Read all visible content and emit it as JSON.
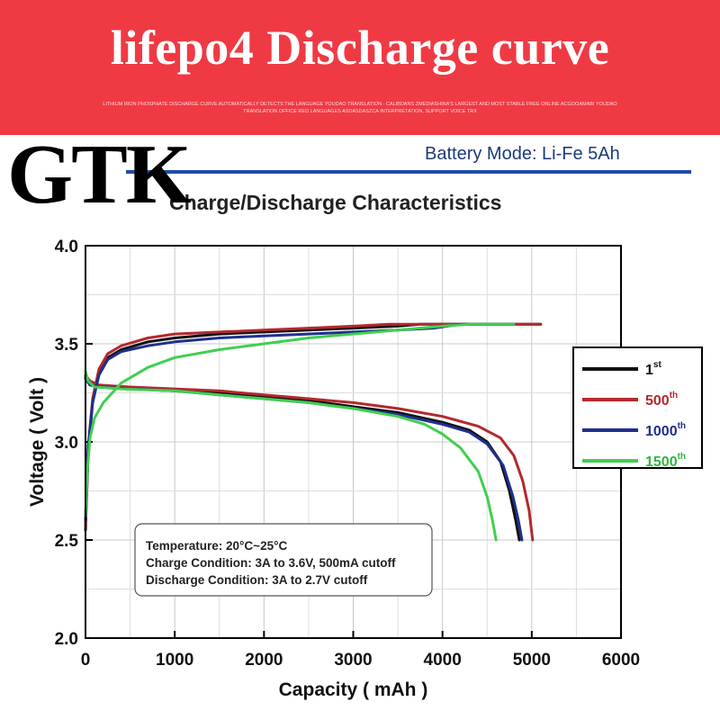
{
  "banner": {
    "title": "lifepo4 Discharge curve",
    "fine_print": "LITHIUM IRON PHOSPHATE DISCHARGE CURVE AUTOMATICALLY DETECTS THE LANGUAGE YOUDAO TRANSLATION - CALIBDANS ZMEDIASHINA'S LARGEST AND MOST STABLE FREE ONLINE ACGOOAMABI YOUDAO TRANSLATION OFFICE RED LANGUAGES ASDASDASZCA INTERPRETATION, SUPPORT VOICE TRX"
  },
  "brand": {
    "text": "GTK"
  },
  "battery_mode": "Battery Mode: Li-Fe 5Ah",
  "chart_data": {
    "type": "line",
    "title": "Charge/Discharge Characteristics",
    "xlabel": "Capacity ( mAh )",
    "ylabel": "Voltage ( Volt )",
    "xlim": [
      0,
      6000
    ],
    "ylim": [
      2.0,
      4.0
    ],
    "xticks": [
      "0",
      "1000",
      "2000",
      "3000",
      "4000",
      "5000",
      "6000"
    ],
    "yticks": [
      "2.0",
      "2.5",
      "3.0",
      "3.5",
      "4.0"
    ],
    "grid": true,
    "legend_position": "right",
    "series": [
      {
        "name": "1st",
        "name_base": "1",
        "name_sup": "st",
        "color": "#111111",
        "charge": [
          [
            0,
            2.55
          ],
          [
            30,
            2.95
          ],
          [
            80,
            3.2
          ],
          [
            150,
            3.35
          ],
          [
            250,
            3.43
          ],
          [
            400,
            3.47
          ],
          [
            700,
            3.51
          ],
          [
            1000,
            3.53
          ],
          [
            1500,
            3.55
          ],
          [
            2000,
            3.56
          ],
          [
            2500,
            3.57
          ],
          [
            3000,
            3.58
          ],
          [
            3500,
            3.59
          ],
          [
            3750,
            3.6
          ],
          [
            5100,
            3.6
          ]
        ],
        "discharge": [
          [
            0,
            3.33
          ],
          [
            50,
            3.3
          ],
          [
            150,
            3.28
          ],
          [
            500,
            3.27
          ],
          [
            1000,
            3.26
          ],
          [
            1500,
            3.25
          ],
          [
            2000,
            3.23
          ],
          [
            2500,
            3.21
          ],
          [
            3000,
            3.18
          ],
          [
            3500,
            3.15
          ],
          [
            4000,
            3.1
          ],
          [
            4300,
            3.06
          ],
          [
            4500,
            3.0
          ],
          [
            4650,
            2.9
          ],
          [
            4750,
            2.75
          ],
          [
            4820,
            2.6
          ],
          [
            4860,
            2.5
          ]
        ]
      },
      {
        "name": "500th",
        "name_base": "500",
        "name_sup": "th",
        "color": "#b3292f",
        "charge": [
          [
            0,
            2.58
          ],
          [
            30,
            2.97
          ],
          [
            80,
            3.22
          ],
          [
            150,
            3.37
          ],
          [
            250,
            3.45
          ],
          [
            400,
            3.49
          ],
          [
            700,
            3.53
          ],
          [
            1000,
            3.55
          ],
          [
            1500,
            3.56
          ],
          [
            2000,
            3.57
          ],
          [
            2500,
            3.58
          ],
          [
            3000,
            3.59
          ],
          [
            3400,
            3.6
          ],
          [
            5100,
            3.6
          ]
        ],
        "discharge": [
          [
            0,
            3.34
          ],
          [
            50,
            3.31
          ],
          [
            150,
            3.29
          ],
          [
            500,
            3.28
          ],
          [
            1000,
            3.27
          ],
          [
            1500,
            3.26
          ],
          [
            2000,
            3.24
          ],
          [
            2500,
            3.22
          ],
          [
            3000,
            3.2
          ],
          [
            3500,
            3.17
          ],
          [
            4000,
            3.13
          ],
          [
            4400,
            3.08
          ],
          [
            4650,
            3.02
          ],
          [
            4800,
            2.93
          ],
          [
            4900,
            2.8
          ],
          [
            4970,
            2.65
          ],
          [
            5010,
            2.5
          ]
        ]
      },
      {
        "name": "1000th",
        "name_base": "1000",
        "name_sup": "th",
        "color": "#1f2f8f",
        "charge": [
          [
            0,
            2.6
          ],
          [
            30,
            2.98
          ],
          [
            80,
            3.2
          ],
          [
            150,
            3.34
          ],
          [
            250,
            3.42
          ],
          [
            400,
            3.46
          ],
          [
            700,
            3.49
          ],
          [
            1000,
            3.51
          ],
          [
            1500,
            3.53
          ],
          [
            2000,
            3.54
          ],
          [
            2500,
            3.55
          ],
          [
            3000,
            3.56
          ],
          [
            3500,
            3.57
          ],
          [
            3900,
            3.58
          ],
          [
            4200,
            3.6
          ],
          [
            4800,
            3.6
          ]
        ],
        "discharge": [
          [
            0,
            3.32
          ],
          [
            50,
            3.29
          ],
          [
            150,
            3.28
          ],
          [
            500,
            3.27
          ],
          [
            1000,
            3.26
          ],
          [
            1500,
            3.24
          ],
          [
            2000,
            3.22
          ],
          [
            2500,
            3.2
          ],
          [
            3000,
            3.17
          ],
          [
            3500,
            3.14
          ],
          [
            4000,
            3.09
          ],
          [
            4300,
            3.05
          ],
          [
            4500,
            2.99
          ],
          [
            4680,
            2.88
          ],
          [
            4790,
            2.72
          ],
          [
            4850,
            2.6
          ],
          [
            4890,
            2.5
          ]
        ]
      },
      {
        "name": "1500th",
        "name_base": "1500",
        "name_sup": "th",
        "color": "#3fcf4f",
        "charge": [
          [
            0,
            2.62
          ],
          [
            20,
            2.85
          ],
          [
            50,
            3.02
          ],
          [
            100,
            3.12
          ],
          [
            200,
            3.2
          ],
          [
            400,
            3.3
          ],
          [
            700,
            3.38
          ],
          [
            1000,
            3.43
          ],
          [
            1500,
            3.47
          ],
          [
            2000,
            3.5
          ],
          [
            2500,
            3.53
          ],
          [
            3000,
            3.55
          ],
          [
            3500,
            3.57
          ],
          [
            4000,
            3.59
          ],
          [
            4300,
            3.6
          ],
          [
            4800,
            3.6
          ]
        ],
        "discharge": [
          [
            0,
            3.36
          ],
          [
            30,
            3.31
          ],
          [
            100,
            3.28
          ],
          [
            400,
            3.27
          ],
          [
            1000,
            3.26
          ],
          [
            1500,
            3.24
          ],
          [
            2000,
            3.22
          ],
          [
            2500,
            3.2
          ],
          [
            3000,
            3.17
          ],
          [
            3500,
            3.13
          ],
          [
            3800,
            3.09
          ],
          [
            4000,
            3.04
          ],
          [
            4200,
            2.97
          ],
          [
            4400,
            2.85
          ],
          [
            4500,
            2.72
          ],
          [
            4560,
            2.6
          ],
          [
            4600,
            2.5
          ]
        ]
      }
    ],
    "annotation": [
      "Temperature: 20°C~25°C",
      "Charge Condition: 3A to 3.6V, 500mA cutoff",
      "Discharge Condition: 3A to 2.7V cutoff"
    ]
  }
}
